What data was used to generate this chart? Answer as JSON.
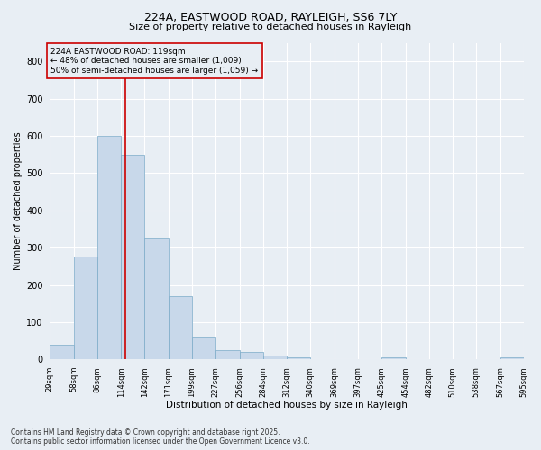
{
  "title_line1": "224A, EASTWOOD ROAD, RAYLEIGH, SS6 7LY",
  "title_line2": "Size of property relative to detached houses in Rayleigh",
  "xlabel": "Distribution of detached houses by size in Rayleigh",
  "ylabel": "Number of detached properties",
  "bar_color": "#c8d8ea",
  "bar_edge_color": "#7aaac8",
  "vline_color": "#cc0000",
  "vline_x": 119,
  "annotation_text": "224A EASTWOOD ROAD: 119sqm\n← 48% of detached houses are smaller (1,009)\n50% of semi-detached houses are larger (1,059) →",
  "annotation_box_edgecolor": "#cc0000",
  "bins": [
    29,
    58,
    86,
    114,
    142,
    171,
    199,
    227,
    256,
    284,
    312,
    340,
    369,
    397,
    425,
    454,
    482,
    510,
    538,
    567,
    595
  ],
  "values": [
    40,
    275,
    600,
    550,
    325,
    170,
    60,
    25,
    20,
    10,
    5,
    0,
    0,
    0,
    5,
    0,
    0,
    0,
    0,
    5
  ],
  "ylim": [
    0,
    850
  ],
  "yticks": [
    0,
    100,
    200,
    300,
    400,
    500,
    600,
    700,
    800
  ],
  "footer_line1": "Contains HM Land Registry data © Crown copyright and database right 2025.",
  "footer_line2": "Contains public sector information licensed under the Open Government Licence v3.0.",
  "background_color": "#e8eef4",
  "plot_bg_color": "#e8eef4",
  "grid_color": "#ffffff"
}
